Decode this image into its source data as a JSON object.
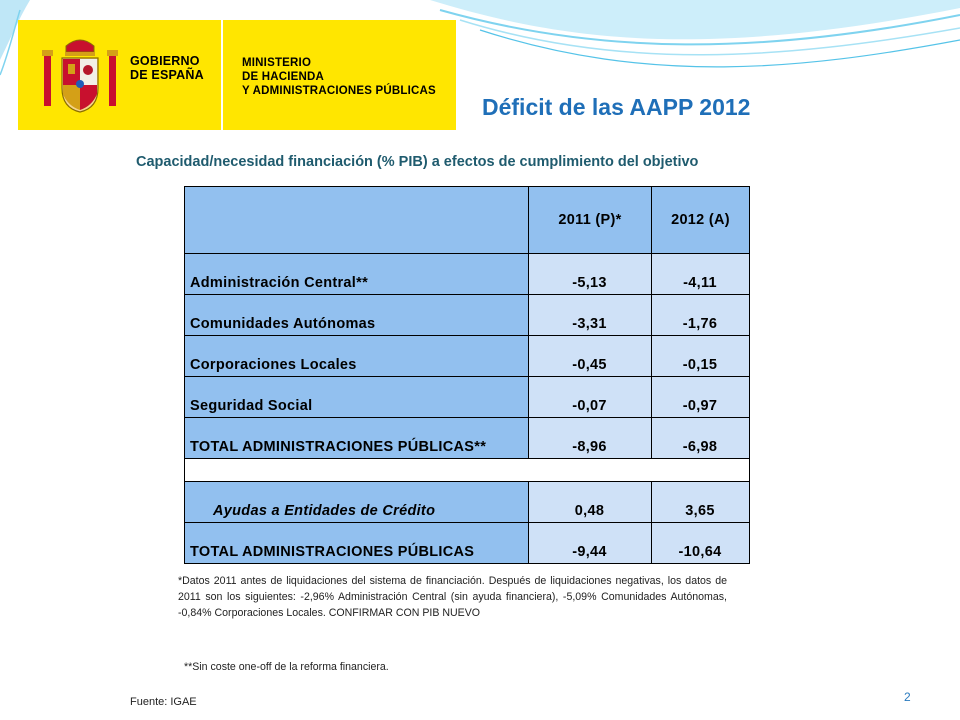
{
  "header": {
    "gov_line1": "GOBIERNO",
    "gov_line2": "DE ESPAÑA",
    "ministry_line1": "MINISTERIO",
    "ministry_line2": "DE HACIENDA",
    "ministry_line3": "Y ADMINISTRACIONES PÚBLICAS",
    "crest_icon": "spanish-coat-of-arms-icon",
    "banner_color": "#ffe600"
  },
  "title": "Déficit de las AAPP 2012",
  "subtitle": "Capacidad/necesidad financiación (% PIB) a efectos de cumplimiento del objetivo",
  "table": {
    "columns": [
      "",
      "2011 (P)*",
      "2012 (A)"
    ],
    "rows": [
      {
        "label": "Administración Central**",
        "v2011": "-5,13",
        "v2012": "-4,11"
      },
      {
        "label": "Comunidades Autónomas",
        "v2011": "-3,31",
        "v2012": "-1,76"
      },
      {
        "label": "Corporaciones Locales",
        "v2011": "-0,45",
        "v2012": "-0,15"
      },
      {
        "label": "Seguridad Social",
        "v2011": "-0,07",
        "v2012": "-0,97"
      },
      {
        "label": "TOTAL ADMINISTRACIONES PÚBLICAS**",
        "v2011": "-8,96",
        "v2012": "-6,98"
      }
    ],
    "rows2": [
      {
        "label": "Ayudas a Entidades de Crédito",
        "v2011": "0,48",
        "v2012": "3,65"
      },
      {
        "label": "TOTAL ADMINISTRACIONES PÚBLICAS",
        "v2011": "-9,44",
        "v2012": "-10,64"
      }
    ],
    "header_color": "#92c0ef",
    "cell_color": "#cfe1f7"
  },
  "notes": {
    "note1": "*Datos 2011 antes de liquidaciones del sistema de financiación. Después de liquidaciones negativas, los datos de 2011 son los siguientes: -2,96% Administración Central (sin ayuda financiera), -5,09% Comunidades Autónomas, -0,84% Corporaciones Locales.  CONFIRMAR CON PIB NUEVO",
    "note2": "**Sin coste one-off de la reforma financiera."
  },
  "source": "Fuente: IGAE",
  "page_number": "2"
}
